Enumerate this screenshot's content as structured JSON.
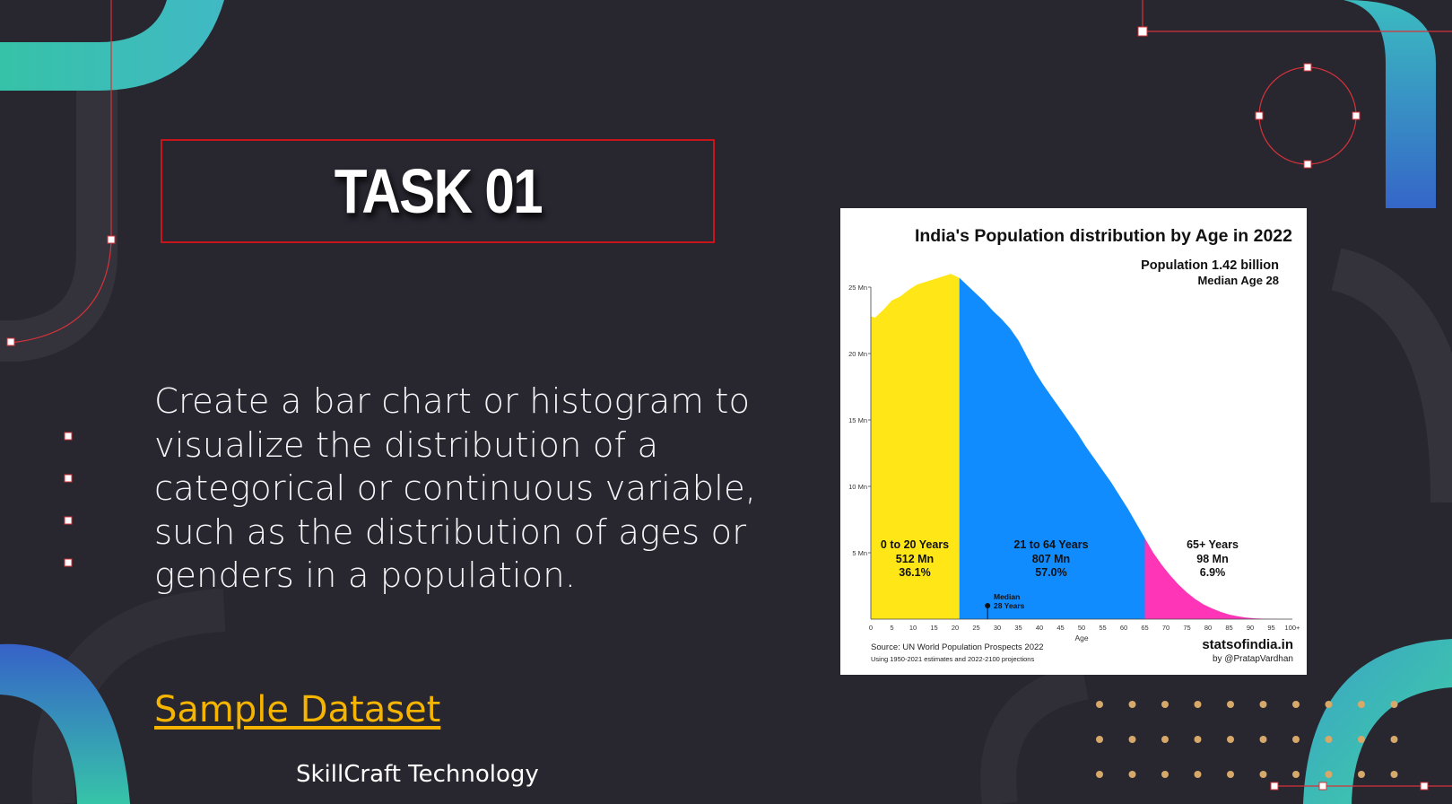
{
  "slide": {
    "task_title": "TASK 01",
    "description": "Create a bar chart or histogram to visualize the distribution of a categorical or continuous variable, such as the distribution of ages or genders in a population.",
    "sample_link": "Sample Dataset",
    "company": "SkillCraft Technology"
  },
  "colors": {
    "background": "#28262f",
    "accent_red": "#c8151b",
    "link_yellow": "#f5b400",
    "teal": "#3fc8b0",
    "blue": "#3a6bc9",
    "dot_tan": "#d6a86a"
  },
  "chart_data": {
    "type": "area",
    "title": "India's Population distribution by Age in 2022",
    "subtitle_lines": [
      "Population 1.42 billion",
      "Median Age 28"
    ],
    "xlabel": "Age",
    "ylabel": "",
    "xlim": [
      0,
      100
    ],
    "ylim": [
      0,
      25
    ],
    "x_ticks": [
      "0",
      "5",
      "10",
      "15",
      "20",
      "25",
      "30",
      "35",
      "40",
      "45",
      "50",
      "55",
      "60",
      "65",
      "70",
      "75",
      "80",
      "85",
      "90",
      "95",
      "100+"
    ],
    "y_ticks": [
      "5 Mn",
      "10 Mn",
      "15 Mn",
      "20 Mn",
      "25 Mn"
    ],
    "x": [
      0,
      1,
      3,
      5,
      7,
      9,
      11,
      13,
      15,
      17,
      19,
      21,
      23,
      25,
      27,
      29,
      31,
      33,
      35,
      37,
      39,
      41,
      43,
      45,
      47,
      49,
      51,
      53,
      55,
      57,
      59,
      61,
      63,
      65,
      67,
      69,
      71,
      73,
      75,
      77,
      79,
      81,
      83,
      85,
      87,
      89,
      91,
      93,
      95,
      97,
      100
    ],
    "values": [
      22.8,
      22.7,
      23.3,
      24.0,
      24.3,
      24.8,
      25.2,
      25.4,
      25.6,
      25.8,
      26.0,
      25.7,
      25.1,
      24.5,
      23.9,
      23.2,
      22.6,
      21.9,
      21.0,
      19.8,
      18.6,
      17.6,
      16.7,
      15.8,
      14.9,
      14.0,
      13.0,
      12.1,
      11.2,
      10.3,
      9.3,
      8.3,
      7.2,
      6.1,
      5.0,
      4.1,
      3.3,
      2.6,
      2.0,
      1.5,
      1.1,
      0.8,
      0.55,
      0.35,
      0.22,
      0.12,
      0.06,
      0.03,
      0.02,
      0.01,
      0.0
    ],
    "segments": [
      {
        "name": "0 to 20 Years",
        "population": "512 Mn",
        "share": "36.1%",
        "from": 0,
        "to": 21,
        "color": "#ffe617"
      },
      {
        "name": "21 to 64 Years",
        "population": "807 Mn",
        "share": "57.0%",
        "from": 21,
        "to": 65,
        "color": "#118cff"
      },
      {
        "name": "65+ Years",
        "population": "98 Mn",
        "share": "6.9%",
        "from": 65,
        "to": 100,
        "color": "#ff35b8"
      }
    ],
    "median": {
      "age": 28,
      "label_line1": "Median",
      "label_line2": "28 Years"
    },
    "source": "Source: UN World Population Prospects 2022",
    "source_note": "Using 1950-2021 estimates and 2022-2100 projections",
    "brand": "statsofindia.in",
    "brand_by": "by @PratapVardhan"
  }
}
